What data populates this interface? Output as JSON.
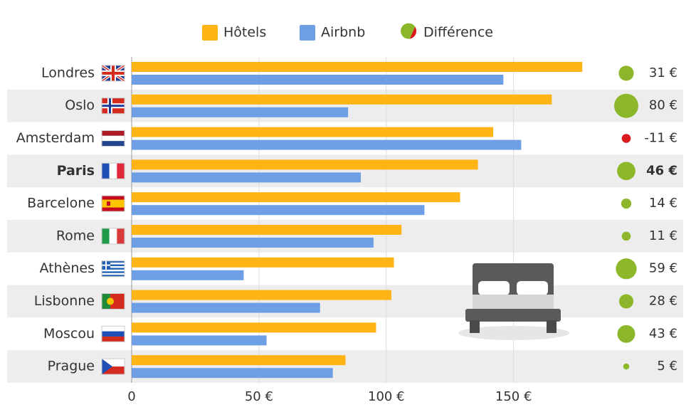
{
  "chart_data": {
    "type": "bar",
    "orientation": "horizontal",
    "categories": [
      "Londres",
      "Oslo",
      "Amsterdam",
      "Paris",
      "Barcelone",
      "Rome",
      "Athènes",
      "Lisbonne",
      "Moscou",
      "Prague"
    ],
    "highlight": "Paris",
    "series": [
      {
        "name": "Hôtels",
        "color": "#fdb414",
        "values": [
          177,
          165,
          142,
          136,
          129,
          106,
          103,
          102,
          96,
          84
        ]
      },
      {
        "name": "Airbnb",
        "color": "#6e9fe5",
        "values": [
          146,
          85,
          153,
          90,
          115,
          95,
          44,
          74,
          53,
          79
        ]
      }
    ],
    "difference": {
      "name": "Différence",
      "positive_color": "#8db72a",
      "negative_color": "#d7191c",
      "values": [
        31,
        80,
        -11,
        46,
        14,
        11,
        59,
        28,
        43,
        5
      ],
      "value_labels": [
        "31 €",
        "80 €",
        "-11 €",
        "46 €",
        "14 €",
        "11 €",
        "59 €",
        "28 €",
        "43 €",
        "5 €"
      ]
    },
    "xlim": [
      0,
      180
    ],
    "xticks": [
      0,
      {
        "value": 50,
        "label": "50 €"
      },
      {
        "value": 100,
        "label": "100 €"
      },
      {
        "value": 150,
        "label": "150 €"
      }
    ],
    "grid": true,
    "legend": "top"
  }
}
